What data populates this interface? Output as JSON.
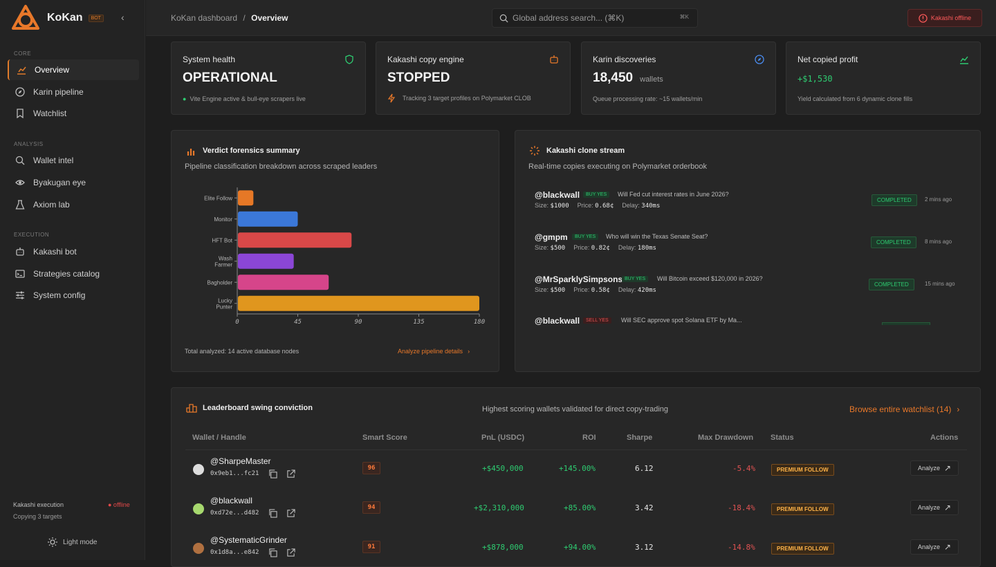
{
  "brand": {
    "name": "KoKan",
    "badge": "BOT"
  },
  "sidebar": {
    "sections": [
      {
        "label": "CORE",
        "items": [
          {
            "label": "Overview",
            "icon": "chart-icon",
            "active": true
          },
          {
            "label": "Karin pipeline",
            "icon": "compass-icon"
          },
          {
            "label": "Watchlist",
            "icon": "bookmark-icon"
          }
        ]
      },
      {
        "label": "ANALYSIS",
        "items": [
          {
            "label": "Wallet intel",
            "icon": "search-icon"
          },
          {
            "label": "Byakugan eye",
            "icon": "eye-icon"
          },
          {
            "label": "Axiom lab",
            "icon": "flask-icon"
          }
        ]
      },
      {
        "label": "EXECUTION",
        "items": [
          {
            "label": "Kakashi bot",
            "icon": "bot-icon"
          },
          {
            "label": "Strategies catalog",
            "icon": "terminal-icon"
          },
          {
            "label": "System config",
            "icon": "sliders-icon"
          }
        ]
      }
    ],
    "exec_label": "Kakashi execution",
    "exec_sub": "Copying 3 targets",
    "exec_status": "● offline",
    "light_mode": "Light mode"
  },
  "header": {
    "crumb_root": "KoKan dashboard",
    "crumb_sep": "/",
    "crumb_current": "Overview",
    "search_placeholder": "Global address search... (⌘K)",
    "search_kbd": "⌘K",
    "offline_label": "Kakashi offline"
  },
  "stats": [
    {
      "title": "System health",
      "value": "OPERATIONAL",
      "sub": "Vite Engine active & bull-eye scrapers live",
      "icon": "shield-icon"
    },
    {
      "title": "Kakashi copy engine",
      "value": "STOPPED",
      "sub": "Tracking 3 target profiles on Polymarket CLOB",
      "icon": "bot-icon"
    },
    {
      "title": "Karin discoveries",
      "value": "18,450",
      "unit": "wallets",
      "sub": "Queue processing rate: ~15 wallets/min",
      "icon": "compass-icon"
    },
    {
      "title": "Net copied profit",
      "value": "+$1,530",
      "sub": "Yield calculated from 6 dynamic clone fills",
      "icon": "trend-icon"
    }
  ],
  "verdict": {
    "title": "Verdict forensics summary",
    "subtitle": "Pipeline classification breakdown across scraped leaders",
    "footer": "Total analyzed: 14 active database nodes",
    "link": "Analyze pipeline details"
  },
  "chart_data": {
    "type": "bar",
    "orientation": "horizontal",
    "categories": [
      "Elite Follow",
      "Monitor",
      "HFT Bot",
      "Wash Farmer",
      "Bagholder",
      "Lucky Punter"
    ],
    "category_lines": [
      [
        "Elite Follow"
      ],
      [
        "Monitor"
      ],
      [
        "HFT Bot"
      ],
      [
        "Wash",
        "Farmer"
      ],
      [
        "Bagholder"
      ],
      [
        "Lucky",
        "Punter"
      ]
    ],
    "values": [
      12,
      45,
      85,
      42,
      68,
      180
    ],
    "colors": [
      "#e67826",
      "#3b78d9",
      "#d94848",
      "#8b46d6",
      "#d6458a",
      "#e0961e"
    ],
    "xlim": [
      0,
      180
    ],
    "xticks": [
      "0",
      "45",
      "90",
      "135",
      "180"
    ]
  },
  "stream": {
    "title": "Kakashi clone stream",
    "subtitle": "Real-time copies executing on Polymarket orderbook",
    "items": [
      {
        "handle": "@blackwall",
        "side": "BUY",
        "outcome": "YES",
        "question": "Will Fed cut interest rates in June 2026?",
        "size": "$1000",
        "price": "0.68¢",
        "delay": "340ms",
        "status": "COMPLETED",
        "time": "2 mins ago"
      },
      {
        "handle": "@gmpm",
        "side": "BUY",
        "outcome": "YES",
        "question": "Who will win the Texas Senate Seat?",
        "size": "$500",
        "price": "0.82¢",
        "delay": "180ms",
        "status": "COMPLETED",
        "time": "8 mins ago"
      },
      {
        "handle": "@MrSparklySimpsons",
        "side": "BUY",
        "outcome": "YES",
        "question": "Will Bitcoin exceed $120,000 in 2026?",
        "size": "$500",
        "price": "0.58¢",
        "delay": "420ms",
        "status": "COMPLETED",
        "time": "15 mins ago"
      },
      {
        "handle": "@blackwall",
        "side": "SELL",
        "outcome": "YES",
        "question": "Will SEC approve spot Solana ETF by Ma..."
      }
    ],
    "size_label": "Size:",
    "price_label": "Price:",
    "delay_label": "Delay:"
  },
  "leaderboard": {
    "title": "Leaderboard swing conviction",
    "subtitle": "Highest scoring wallets validated for direct copy-trading",
    "link": "Browse entire watchlist (14)",
    "columns": [
      "Wallet / Handle",
      "Smart Score",
      "PnL (USDC)",
      "ROI",
      "Sharpe",
      "Max Drawdown",
      "Status",
      "Actions"
    ],
    "rows": [
      {
        "handle": "@SharpeMaster",
        "addr": "0x9eb1...fc21",
        "score": "96",
        "pnl": "+$450,000",
        "roi": "+145.00%",
        "sharpe": "6.12",
        "dd": "-5.4%",
        "status": "PREMIUM FOLLOW",
        "action": "Analyze"
      },
      {
        "handle": "@blackwall",
        "addr": "0xd72e...d482",
        "score": "94",
        "pnl": "+$2,310,000",
        "roi": "+85.00%",
        "sharpe": "3.42",
        "dd": "-18.4%",
        "status": "PREMIUM FOLLOW",
        "action": "Analyze"
      },
      {
        "handle": "@SystematicGrinder",
        "addr": "0x1d8a...e842",
        "score": "91",
        "pnl": "+$878,000",
        "roi": "+94.00%",
        "sharpe": "3.12",
        "dd": "-14.8%",
        "status": "PREMIUM FOLLOW",
        "action": "Analyze"
      }
    ]
  }
}
